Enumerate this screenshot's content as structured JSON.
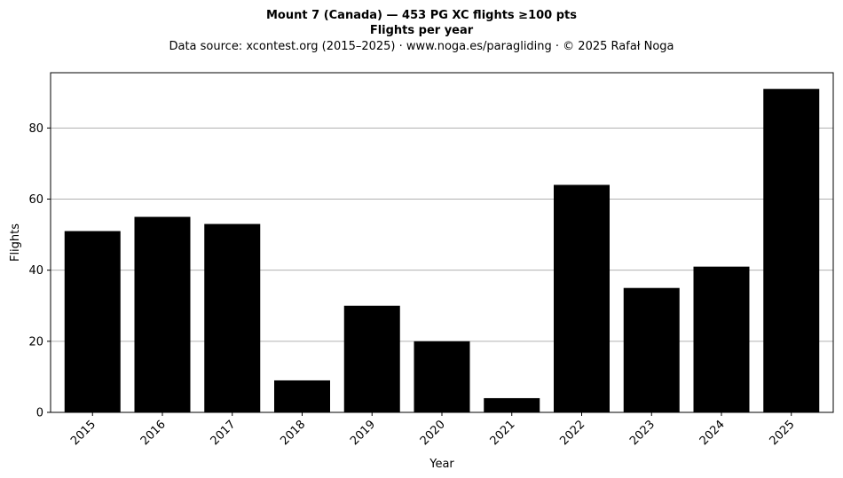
{
  "chart_data": {
    "type": "bar",
    "title": "Mount 7 (Canada)  —  453 PG XC flights ≥100 pts",
    "title_line2": "Flights per year",
    "subtitle": "Data source: xcontest.org (2015–2025)  ·  www.noga.es/paragliding  ·  © 2025 Rafał Noga",
    "xlabel": "Year",
    "ylabel": "Flights",
    "categories": [
      "2015",
      "2016",
      "2017",
      "2018",
      "2019",
      "2020",
      "2021",
      "2022",
      "2023",
      "2024",
      "2025"
    ],
    "values": [
      51,
      55,
      53,
      9,
      30,
      20,
      4,
      64,
      35,
      41,
      91
    ],
    "ylim": [
      0,
      95.55
    ],
    "yticks": [
      0,
      20,
      40,
      60,
      80
    ],
    "grid": "horizontal",
    "bar_color": "#000000",
    "grid_color": "#b0b0b0"
  }
}
